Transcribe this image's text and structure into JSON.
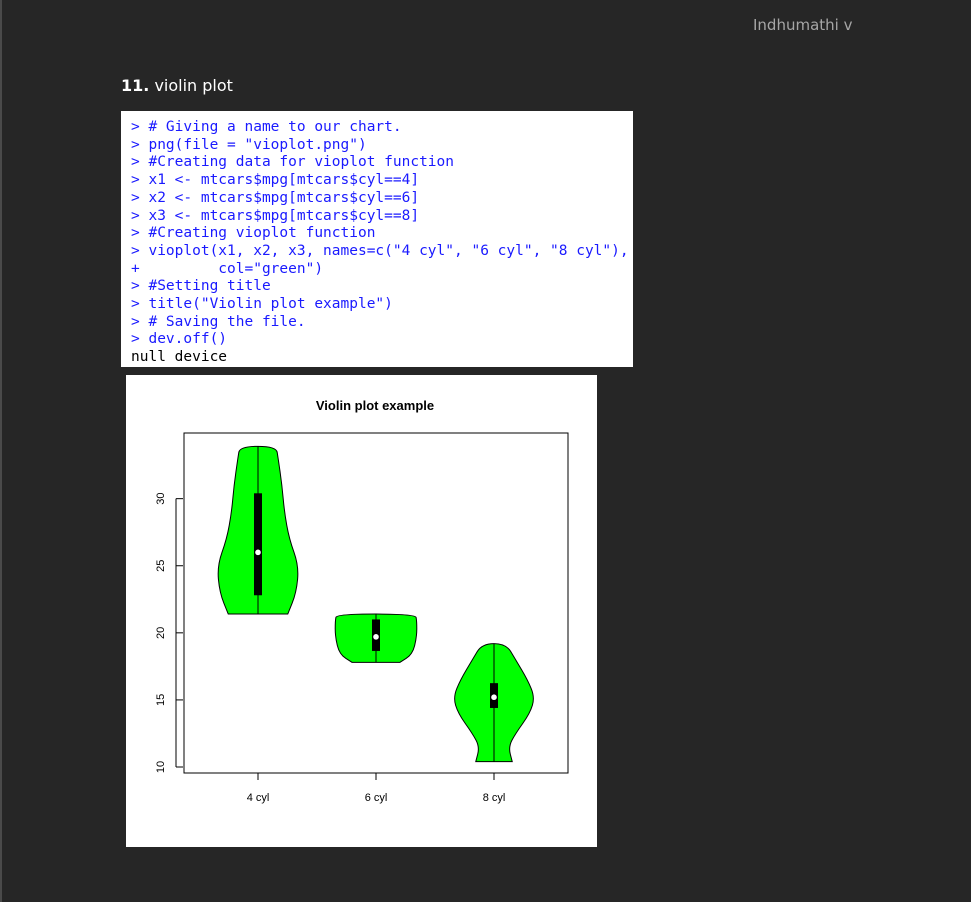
{
  "header": {
    "author": "Indhumathi v"
  },
  "section": {
    "number": "11.",
    "title": "violin plot"
  },
  "console": {
    "lines": [
      {
        "text": "> # Giving a name to our chart.",
        "kind": "input"
      },
      {
        "text": "> png(file = \"vioplot.png\")",
        "kind": "input"
      },
      {
        "text": "> #Creating data for vioplot function",
        "kind": "input"
      },
      {
        "text": "> x1 <- mtcars$mpg[mtcars$cyl==4]",
        "kind": "input"
      },
      {
        "text": "> x2 <- mtcars$mpg[mtcars$cyl==6]",
        "kind": "input"
      },
      {
        "text": "> x3 <- mtcars$mpg[mtcars$cyl==8]",
        "kind": "input"
      },
      {
        "text": "> #Creating vioplot function",
        "kind": "input"
      },
      {
        "text": "> vioplot(x1, x2, x3, names=c(\"4 cyl\", \"6 cyl\", \"8 cyl\"),",
        "kind": "input"
      },
      {
        "text": "+         col=\"green\")",
        "kind": "input"
      },
      {
        "text": "> #Setting title",
        "kind": "input"
      },
      {
        "text": "> title(\"Violin plot example\")",
        "kind": "input"
      },
      {
        "text": "> # Saving the file.",
        "kind": "input"
      },
      {
        "text": "> dev.off()",
        "kind": "input"
      },
      {
        "text": "null device",
        "kind": "output"
      }
    ]
  },
  "chart_data": {
    "type": "violin",
    "title": "Violin plot example",
    "xlabel": "",
    "ylabel": "",
    "categories": [
      "4 cyl",
      "6 cyl",
      "8 cyl"
    ],
    "y_ticks": [
      10,
      15,
      20,
      25,
      30
    ],
    "ylim": [
      10,
      34
    ],
    "fill_color": "#00ff00",
    "series": [
      {
        "category": "4 cyl",
        "min": 21.4,
        "q1": 22.8,
        "median": 26.0,
        "q3": 30.4,
        "max": 33.9,
        "density_profile": [
          [
            21.4,
            0.62
          ],
          [
            23.0,
            0.8
          ],
          [
            25.0,
            0.85
          ],
          [
            27.0,
            0.65
          ],
          [
            29.0,
            0.55
          ],
          [
            31.0,
            0.5
          ],
          [
            33.0,
            0.42
          ],
          [
            33.9,
            0.38
          ]
        ]
      },
      {
        "category": "6 cyl",
        "min": 17.8,
        "q1": 18.65,
        "median": 19.7,
        "q3": 21.0,
        "max": 21.4,
        "density_profile": [
          [
            17.8,
            0.5
          ],
          [
            18.4,
            0.76
          ],
          [
            19.7,
            0.85
          ],
          [
            20.9,
            0.85
          ],
          [
            21.4,
            0.82
          ]
        ]
      },
      {
        "category": "8 cyl",
        "min": 10.4,
        "q1": 14.4,
        "median": 15.2,
        "q3": 16.25,
        "max": 19.2,
        "density_profile": [
          [
            10.4,
            0.38
          ],
          [
            11.5,
            0.3
          ],
          [
            12.5,
            0.45
          ],
          [
            14.0,
            0.75
          ],
          [
            15.2,
            0.85
          ],
          [
            16.5,
            0.7
          ],
          [
            18.0,
            0.45
          ],
          [
            19.2,
            0.25
          ]
        ]
      }
    ]
  }
}
